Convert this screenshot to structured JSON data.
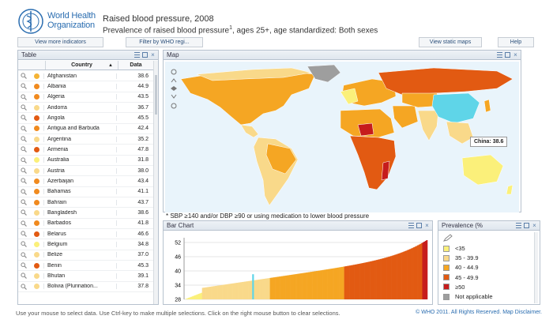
{
  "header": {
    "org_line1": "World Health",
    "org_line2": "Organization",
    "title": "Raised blood pressure, 2008",
    "subtitle": "Prevalence of raised blood pressure",
    "subtitle_sup": "1",
    "subtitle_rest": ", ages 25+, age standardized:  Both sexes"
  },
  "toolbar": {
    "more_indicators": "View more indicators",
    "filter": "Filter by WHO regi...",
    "static_maps": "View static maps",
    "help": "Help"
  },
  "table": {
    "title": "Table",
    "col_country": "Country",
    "sort_glyph": "▲",
    "col_data": "Data",
    "rows": [
      {
        "country": "Afghanistan",
        "value": "38.6",
        "color": "#f5b335"
      },
      {
        "country": "Albania",
        "value": "44.9",
        "color": "#f08a1f"
      },
      {
        "country": "Algeria",
        "value": "43.5",
        "color": "#f08a1f"
      },
      {
        "country": "Andorra",
        "value": "36.7",
        "color": "#f9d98a"
      },
      {
        "country": "Angola",
        "value": "45.5",
        "color": "#e25a12"
      },
      {
        "country": "Antigua and Barbuda",
        "value": "42.4",
        "color": "#f08a1f"
      },
      {
        "country": "Argentina",
        "value": "35.2",
        "color": "#f9d98a"
      },
      {
        "country": "Armenia",
        "value": "47.8",
        "color": "#e25a12"
      },
      {
        "country": "Australia",
        "value": "31.8",
        "color": "#fbf07a"
      },
      {
        "country": "Austria",
        "value": "38.0",
        "color": "#f9d98a"
      },
      {
        "country": "Azerbaijan",
        "value": "43.4",
        "color": "#f08a1f"
      },
      {
        "country": "Bahamas",
        "value": "41.1",
        "color": "#f08a1f"
      },
      {
        "country": "Bahrain",
        "value": "43.7",
        "color": "#f08a1f"
      },
      {
        "country": "Bangladesh",
        "value": "38.6",
        "color": "#f9d98a"
      },
      {
        "country": "Barbados",
        "value": "41.8",
        "color": "#f08a1f"
      },
      {
        "country": "Belarus",
        "value": "46.6",
        "color": "#e25a12"
      },
      {
        "country": "Belgium",
        "value": "34.8",
        "color": "#fbf07a"
      },
      {
        "country": "Belize",
        "value": "37.0",
        "color": "#f9d98a"
      },
      {
        "country": "Benin",
        "value": "45.3",
        "color": "#e25a12"
      },
      {
        "country": "Bhutan",
        "value": "39.1",
        "color": "#f9d98a"
      },
      {
        "country": "Bolivia (Plurination...",
        "value": "37.8",
        "color": "#f9d98a"
      }
    ]
  },
  "map": {
    "title": "Map",
    "tooltip": "China: 38.6",
    "footnote": "* SBP ≥140 and/or DBP ≥90 or using medication to lower blood pressure"
  },
  "bar_chart": {
    "title": "Bar Chart"
  },
  "chart_data": {
    "type": "bar",
    "title": "Bar Chart",
    "ylim": [
      28,
      54
    ],
    "yticks": [
      28,
      34,
      40,
      46,
      52
    ],
    "bands": [
      {
        "from": 0.0,
        "to": 0.07,
        "color": "#fbf07a"
      },
      {
        "from": 0.07,
        "to": 0.35,
        "color": "#f9d98a"
      },
      {
        "from": 0.35,
        "to": 0.66,
        "color": "#f5a623"
      },
      {
        "from": 0.66,
        "to": 0.98,
        "color": "#e25a12"
      },
      {
        "from": 0.98,
        "to": 1.0,
        "color": "#c61c1c"
      }
    ],
    "highlight": {
      "label": "China",
      "value": 38.6,
      "color": "#5fd5e8",
      "position": 0.28
    },
    "sorted_values_start": 28,
    "sorted_values_end": 53
  },
  "legend": {
    "title": "Prevalence (%",
    "items": [
      {
        "label": "<35",
        "color": "#fbf07a"
      },
      {
        "label": "35 - 39.9",
        "color": "#f9d98a"
      },
      {
        "label": "40 - 44.9",
        "color": "#f5a623"
      },
      {
        "label": "45 - 49.9",
        "color": "#e25a12"
      },
      {
        "label": "≥50",
        "color": "#c61c1c"
      },
      {
        "label": "Not applicable",
        "color": "#9e9e9e"
      }
    ]
  },
  "status": {
    "hint": "Use your mouse to select data.  Use Ctrl-key to make multiple selections.  Click on the right mouse button to clear selections.",
    "copyright": "© WHO 2011. All Rights Reserved. Map Disclaimer."
  }
}
